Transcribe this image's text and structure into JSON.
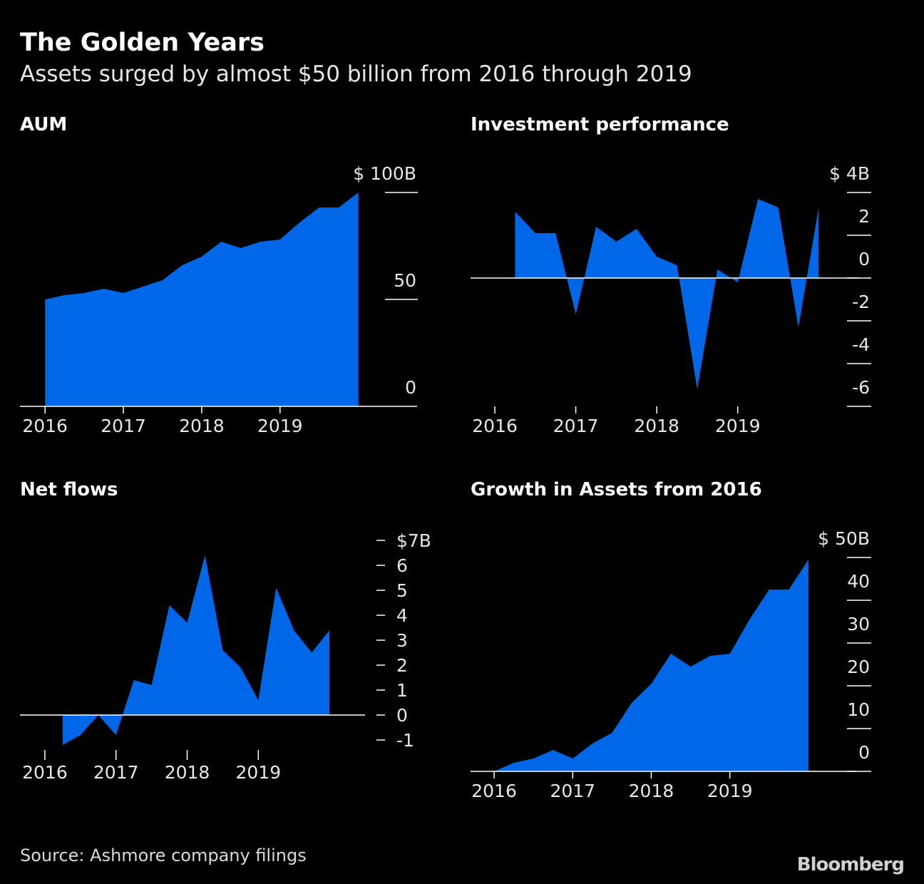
{
  "header": {
    "title": "The Golden Years",
    "subtitle": "Assets surged by almost $50 billion from 2016 through 2019"
  },
  "colors": {
    "area": "#0068E8",
    "background": "#000000",
    "axis": "#ffffff",
    "text": "#e6e6e6"
  },
  "chart_data": [
    {
      "id": "aum",
      "type": "area",
      "title": "AUM",
      "x": [
        2016.0,
        2016.25,
        2016.5,
        2016.75,
        2017.0,
        2017.25,
        2017.5,
        2017.75,
        2018.0,
        2018.25,
        2018.5,
        2018.75,
        2019.0,
        2019.25,
        2019.5,
        2019.75,
        2020.0
      ],
      "values": [
        50,
        52,
        53,
        55,
        53,
        56,
        59,
        66,
        70,
        77,
        74,
        77,
        78,
        86,
        93,
        93,
        100
      ],
      "xlim": [
        2015.68,
        2020.75
      ],
      "ylim": [
        0,
        100
      ],
      "baseline": 0,
      "yticks": [
        0,
        50,
        100
      ],
      "ytick_labels": [
        "0",
        "50",
        "100B"
      ],
      "unit_prefix": "$",
      "xticks": [
        2016,
        2017,
        2018,
        2019
      ],
      "xtick_labels": [
        "2016",
        "2017",
        "2018",
        "2019"
      ],
      "label_position": "above-tick"
    },
    {
      "id": "investment",
      "type": "area",
      "title": "Investment performance",
      "x": [
        2016.25,
        2016.5,
        2016.75,
        2017.0,
        2017.25,
        2017.5,
        2017.75,
        2018.0,
        2018.25,
        2018.5,
        2018.75,
        2019.0,
        2019.25,
        2019.5,
        2019.75,
        2020.0
      ],
      "values": [
        3.1,
        2.1,
        2.1,
        -1.7,
        2.4,
        1.7,
        2.3,
        1.0,
        0.6,
        -5.2,
        0.4,
        -0.2,
        3.7,
        3.3,
        -2.3,
        3.3
      ],
      "xlim": [
        2015.7,
        2020.5
      ],
      "ylim": [
        -6,
        4
      ],
      "baseline": 0,
      "yticks": [
        -6,
        -4,
        -2,
        0,
        2,
        4
      ],
      "ytick_labels": [
        "-6",
        "-4",
        "-2",
        "0",
        "2",
        "4B"
      ],
      "unit_prefix": "$",
      "xticks": [
        2016,
        2017,
        2018,
        2019
      ],
      "xtick_labels": [
        "2016",
        "2017",
        "2018",
        "2019"
      ],
      "label_position": "above-tick"
    },
    {
      "id": "netflows",
      "type": "area",
      "title": "Net flows",
      "x": [
        2016.25,
        2016.5,
        2016.75,
        2017.0,
        2017.25,
        2017.5,
        2017.75,
        2018.0,
        2018.25,
        2018.5,
        2018.75,
        2019.0,
        2019.25,
        2019.5,
        2019.75,
        2020.0
      ],
      "values": [
        -1.2,
        -0.8,
        0.0,
        -0.8,
        1.4,
        1.2,
        4.4,
        3.7,
        6.4,
        2.6,
        1.9,
        0.6,
        5.1,
        3.4,
        2.5,
        3.4
      ],
      "xlim": [
        2015.65,
        2020.5
      ],
      "ylim": [
        -1,
        7
      ],
      "baseline": 0,
      "yticks": [
        -1,
        0,
        1,
        2,
        3,
        4,
        5,
        6,
        7
      ],
      "ytick_labels": [
        "-1",
        "0",
        "1",
        "2",
        "3",
        "4",
        "5",
        "6",
        "7B"
      ],
      "unit_prefix": "$",
      "xticks": [
        2016,
        2017,
        2018,
        2019
      ],
      "xtick_labels": [
        "2016",
        "2017",
        "2018",
        "2019"
      ],
      "label_position": "beside-tick"
    },
    {
      "id": "growth",
      "type": "area",
      "title": "Growth in Assets from 2016",
      "x": [
        2016.0,
        2016.25,
        2016.5,
        2016.75,
        2017.0,
        2017.25,
        2017.5,
        2017.75,
        2018.0,
        2018.25,
        2018.5,
        2018.75,
        2019.0,
        2019.25,
        2019.5,
        2019.75,
        2020.0
      ],
      "values": [
        0,
        2,
        3,
        5,
        3,
        6.5,
        9,
        16,
        20.5,
        27.5,
        24.5,
        27,
        27.5,
        35.5,
        42.5,
        42.5,
        49.5
      ],
      "xlim": [
        2015.7,
        2020.6
      ],
      "ylim": [
        0,
        50
      ],
      "baseline": 0,
      "yticks": [
        0,
        10,
        20,
        30,
        40,
        50
      ],
      "ytick_labels": [
        "0",
        "10",
        "20",
        "30",
        "40",
        "50B"
      ],
      "unit_prefix": "$",
      "xticks": [
        2016,
        2017,
        2018,
        2019
      ],
      "xtick_labels": [
        "2016",
        "2017",
        "2018",
        "2019"
      ],
      "label_position": "above-tick"
    }
  ],
  "footer": {
    "source": "Source: Ashmore company filings",
    "logo": "Bloomberg"
  }
}
